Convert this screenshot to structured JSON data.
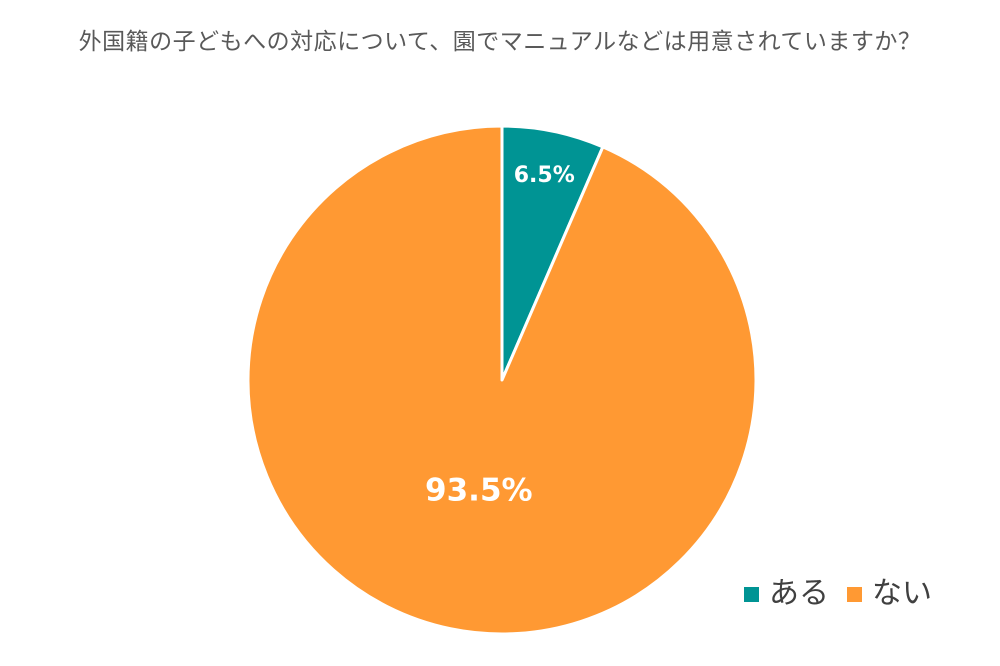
{
  "chart_data": {
    "type": "pie",
    "title": "外国籍の子どもへの対応について、園でマニュアルなどは用意されていますか？",
    "categories": [
      "ある",
      "ない"
    ],
    "values": [
      6.5,
      93.5
    ],
    "value_labels": [
      "6.5%",
      "93.5%"
    ],
    "colors": [
      "#009494",
      "#FF9933"
    ],
    "start_angle_deg": 0,
    "direction": "clockwise",
    "legend_position": "bottom-right"
  }
}
